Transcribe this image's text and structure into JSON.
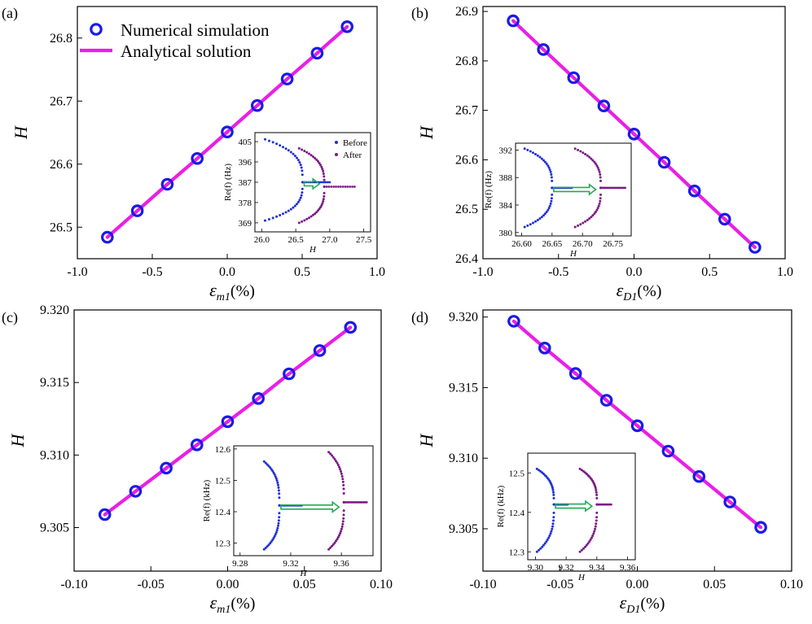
{
  "colors": {
    "marker": "#1a1ae6",
    "line": "#e91fe6",
    "before": "#1f2fd6",
    "after": "#7a1a82",
    "arrow": "#22aa55"
  },
  "legend": {
    "numerical": "Numerical simulation",
    "analytical": "Analytical solution"
  },
  "chart_data": [
    {
      "type": "line",
      "panel": "(a)",
      "title": "",
      "xlabel_sym": "ε",
      "xlabel_sub": "m1",
      "xlabel_unit": "(%)",
      "ylabel": "H",
      "xlim": [
        -1.0,
        1.0
      ],
      "ylim": [
        26.45,
        26.85
      ],
      "xticks": [
        "-1.0",
        "-0.5",
        "0.0",
        "0.5",
        "1.0"
      ],
      "yticks": [
        "26.5",
        "26.6",
        "26.7",
        "26.8"
      ],
      "x": [
        -0.8,
        -0.6,
        -0.4,
        -0.2,
        0.0,
        0.2,
        0.4,
        0.6,
        0.8
      ],
      "series": [
        {
          "name": "Numerical simulation",
          "values": [
            26.484,
            26.526,
            26.568,
            26.609,
            26.651,
            26.693,
            26.735,
            26.776,
            26.818
          ]
        },
        {
          "name": "Analytical solution",
          "values": [
            26.484,
            26.526,
            26.568,
            26.609,
            26.651,
            26.693,
            26.735,
            26.776,
            26.818
          ]
        }
      ],
      "inset": {
        "xlabel": "H",
        "ylabel": "Re(f) (Hz)",
        "xlim": [
          25.9,
          27.6
        ],
        "ylim": [
          365,
          409
        ],
        "xticks": [
          "26.0",
          "26.5",
          "27.0",
          "27.5"
        ],
        "yticks": [
          "369",
          "378",
          "387",
          "396",
          "405"
        ],
        "legend_before": "Before",
        "legend_after": "After",
        "before": {
          "x_ep": 26.6,
          "x_min": 26.05,
          "x_max": 27.0,
          "y_ep": 387,
          "y_top": 406,
          "y_bot": 370
        },
        "after": {
          "x_ep": 26.92,
          "x_min": 26.55,
          "x_max": 27.4,
          "y_ep": 385,
          "y_top": 402,
          "y_bot": 369
        }
      }
    },
    {
      "type": "line",
      "panel": "(b)",
      "title": "",
      "xlabel_sym": "ε",
      "xlabel_sub": "D1",
      "xlabel_unit": "(%)",
      "ylabel": "H",
      "xlim": [
        -1.0,
        1.0
      ],
      "ylim": [
        26.4,
        26.91
      ],
      "xticks": [
        "-1.0",
        "-0.5",
        "0.0",
        "0.5",
        "1.0"
      ],
      "yticks": [
        "26.4",
        "26.5",
        "26.6",
        "26.7",
        "26.8",
        "26.9"
      ],
      "x": [
        -0.8,
        -0.6,
        -0.4,
        -0.2,
        0.0,
        0.2,
        0.4,
        0.6,
        0.8
      ],
      "series": [
        {
          "name": "Numerical simulation",
          "values": [
            26.881,
            26.823,
            26.766,
            26.709,
            26.652,
            26.595,
            26.537,
            26.48,
            26.423
          ]
        },
        {
          "name": "Analytical solution",
          "values": [
            26.881,
            26.823,
            26.766,
            26.709,
            26.652,
            26.595,
            26.537,
            26.48,
            26.423
          ]
        }
      ],
      "inset": {
        "xlabel": "H",
        "ylabel": "Re(f) (Hz)",
        "xlim": [
          26.59,
          26.78
        ],
        "ylim": [
          379.5,
          393
        ],
        "xticks": [
          "26.60",
          "26.65",
          "26.70",
          "26.75"
        ],
        "yticks": [
          "380",
          "384",
          "388",
          "392"
        ],
        "legend_before": "",
        "legend_after": "",
        "before": {
          "x_ep": 26.65,
          "x_min": 26.605,
          "x_max": 26.685,
          "y_ep": 386.5,
          "y_top": 392.2,
          "y_bot": 380.8
        },
        "after": {
          "x_ep": 26.73,
          "x_min": 26.688,
          "x_max": 26.77,
          "y_ep": 386.5,
          "y_top": 392.2,
          "y_bot": 380.8
        }
      }
    },
    {
      "type": "line",
      "panel": "(c)",
      "title": "",
      "xlabel_sym": "ε",
      "xlabel_sub": "m1",
      "xlabel_unit": "(%)",
      "ylabel": "H",
      "xlim": [
        -0.1,
        0.1
      ],
      "ylim": [
        9.302,
        9.32
      ],
      "xticks": [
        "-0.10",
        "-0.05",
        "0.00",
        "0.05",
        "0.10"
      ],
      "yticks": [
        "9.305",
        "9.310",
        "9.315",
        "9.320"
      ],
      "x": [
        -0.08,
        -0.06,
        -0.04,
        -0.02,
        0.0,
        0.02,
        0.04,
        0.06,
        0.08
      ],
      "series": [
        {
          "name": "Numerical simulation",
          "values": [
            9.3059,
            9.3075,
            9.3091,
            9.3107,
            9.3123,
            9.3139,
            9.3156,
            9.3172,
            9.3188
          ]
        },
        {
          "name": "Analytical solution",
          "values": [
            9.3059,
            9.3075,
            9.3091,
            9.3107,
            9.3123,
            9.3139,
            9.3156,
            9.3172,
            9.3188
          ]
        }
      ],
      "inset": {
        "xlabel": "H",
        "ylabel": "Re(f) (kHz)",
        "xlim": [
          9.275,
          9.385
        ],
        "ylim": [
          12.26,
          12.61
        ],
        "xticks": [
          "9.28",
          "9.32",
          "9.36"
        ],
        "yticks": [
          "12.3",
          "12.4",
          "12.5",
          "12.6"
        ],
        "legend_before": "",
        "legend_after": "",
        "before": {
          "x_ep": 9.311,
          "x_min": 9.299,
          "x_max": 9.33,
          "y_ep": 12.42,
          "y_top": 12.56,
          "y_bot": 12.28
        },
        "after": {
          "x_ep": 9.362,
          "x_min": 9.35,
          "x_max": 9.38,
          "y_ep": 12.43,
          "y_top": 12.59,
          "y_bot": 12.28
        }
      }
    },
    {
      "type": "line",
      "panel": "(d)",
      "title": "",
      "xlabel_sym": "ε",
      "xlabel_sub": "D1",
      "xlabel_unit": "(%)",
      "ylabel": "H",
      "xlim": [
        -0.1,
        0.1
      ],
      "ylim": [
        9.302,
        9.3205
      ],
      "xticks": [
        "-0.10",
        "-0.05",
        "0.00",
        "0.05",
        "0.10"
      ],
      "yticks": [
        "9.305",
        "9.310",
        "9.315",
        "9.320"
      ],
      "x": [
        -0.08,
        -0.06,
        -0.04,
        -0.02,
        0.0,
        0.02,
        0.04,
        0.06,
        0.08
      ],
      "series": [
        {
          "name": "Numerical simulation",
          "values": [
            9.3197,
            9.3178,
            9.316,
            9.3141,
            9.3123,
            9.3105,
            9.3087,
            9.3069,
            9.3051
          ]
        },
        {
          "name": "Analytical solution",
          "values": [
            9.3197,
            9.3178,
            9.316,
            9.3141,
            9.3123,
            9.3105,
            9.3087,
            9.3069,
            9.3051
          ]
        }
      ],
      "inset": {
        "xlabel": "H",
        "ylabel": "Re(f) (kHz)",
        "xlim": [
          9.295,
          9.365
        ],
        "ylim": [
          12.28,
          12.55
        ],
        "xticks": [
          "9.30",
          "9.32",
          "9.34",
          "9.36"
        ],
        "yticks": [
          "12.3",
          "12.4",
          "12.5"
        ],
        "legend_before": "",
        "legend_after": "",
        "before": {
          "x_ep": 9.312,
          "x_min": 9.301,
          "x_max": 9.321,
          "y_ep": 12.42,
          "y_top": 12.51,
          "y_bot": 12.3
        },
        "after": {
          "x_ep": 9.34,
          "x_min": 9.329,
          "x_max": 9.35,
          "y_ep": 12.42,
          "y_top": 12.51,
          "y_bot": 12.3
        }
      }
    }
  ]
}
